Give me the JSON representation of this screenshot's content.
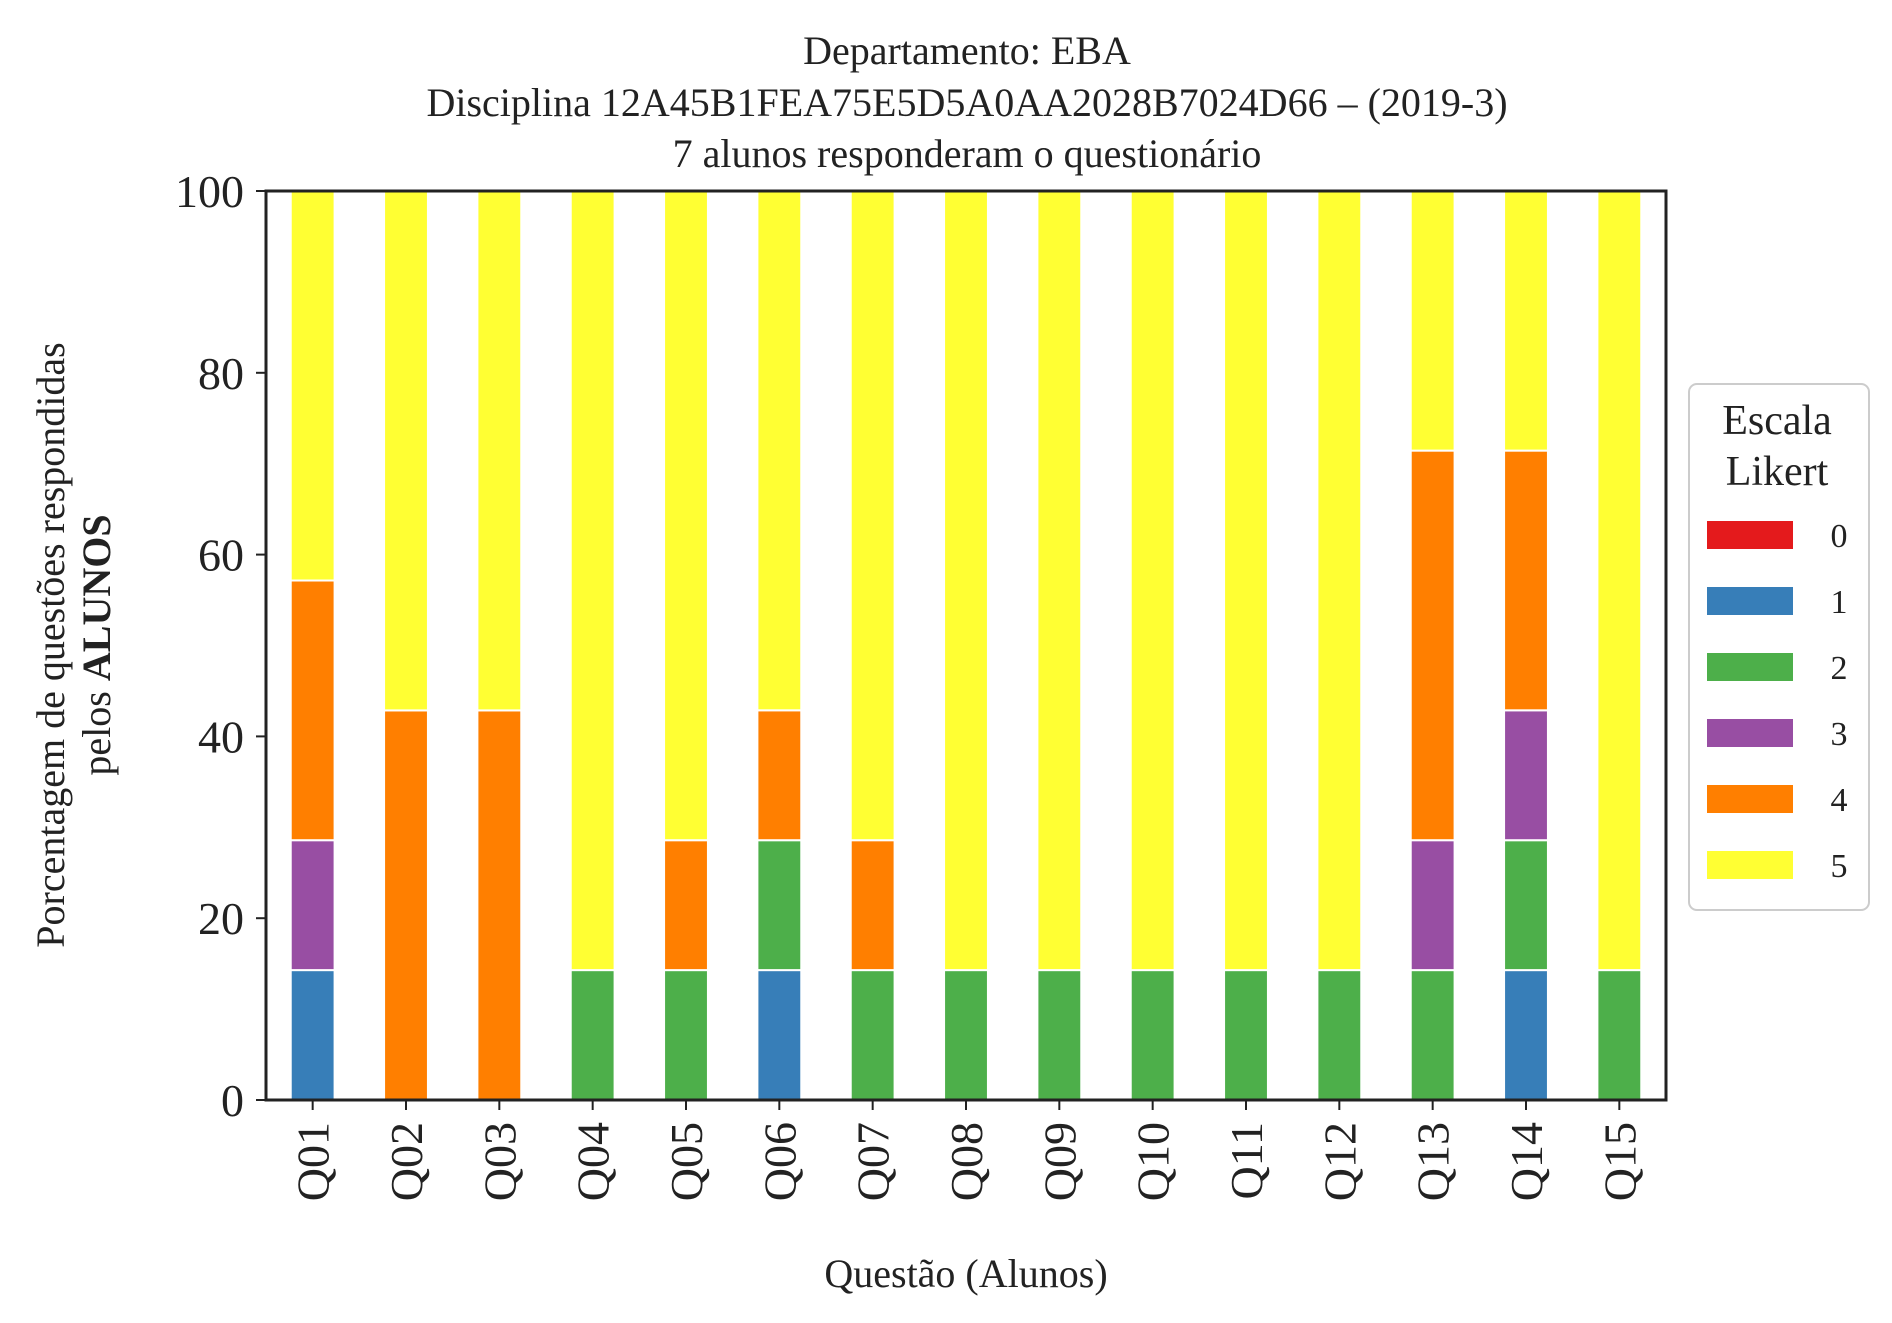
{
  "chart_data": {
    "type": "bar",
    "stacked": true,
    "title_lines": [
      "Departamento: EBA",
      "Disciplina 12A45B1FEA75E5D5A0AA2028B7024D66 – (2019-3)",
      "7 alunos responderam o questionário"
    ],
    "xlabel": "Questão (Alunos)",
    "ylabel_line1": "Porcentagem de questões respondidas",
    "ylabel_line2_prefix": "pelos ",
    "ylabel_line2_bold": "ALUNOS",
    "ylim": [
      0,
      100
    ],
    "yticks": [
      "0",
      "20",
      "40",
      "60",
      "80",
      "100"
    ],
    "grid": false,
    "categories": [
      "Q01",
      "Q02",
      "Q03",
      "Q04",
      "Q05",
      "Q06",
      "Q07",
      "Q08",
      "Q09",
      "Q10",
      "Q11",
      "Q12",
      "Q13",
      "Q14",
      "Q15"
    ],
    "series": [
      {
        "name": "0",
        "color": "#e41a1c",
        "values": [
          0,
          0,
          0,
          0,
          0,
          0,
          0,
          0,
          0,
          0,
          0,
          0,
          0,
          0,
          0
        ]
      },
      {
        "name": "1",
        "color": "#377eb8",
        "values": [
          14.29,
          0,
          0,
          0,
          0,
          14.29,
          0,
          0,
          0,
          0,
          0,
          0,
          0,
          14.29,
          0
        ]
      },
      {
        "name": "2",
        "color": "#4daf4a",
        "values": [
          0,
          0,
          0,
          14.29,
          14.29,
          14.29,
          14.29,
          14.29,
          14.29,
          14.29,
          14.29,
          14.29,
          14.29,
          14.29,
          14.29
        ]
      },
      {
        "name": "3",
        "color": "#984ea3",
        "values": [
          14.29,
          0,
          0,
          0,
          0,
          0,
          0,
          0,
          0,
          0,
          0,
          0,
          14.29,
          14.29,
          0
        ]
      },
      {
        "name": "4",
        "color": "#ff7f00",
        "values": [
          28.57,
          42.86,
          42.86,
          0,
          14.29,
          14.29,
          14.29,
          0,
          0,
          0,
          0,
          0,
          42.86,
          28.57,
          0
        ]
      },
      {
        "name": "5",
        "color": "#ffff33",
        "values": [
          42.86,
          57.14,
          57.14,
          85.71,
          71.43,
          57.14,
          71.43,
          85.71,
          85.71,
          85.71,
          85.71,
          85.71,
          28.57,
          28.57,
          85.71
        ]
      }
    ],
    "legend": {
      "title_lines": [
        "Escala",
        "Likert"
      ],
      "position": "right"
    }
  }
}
